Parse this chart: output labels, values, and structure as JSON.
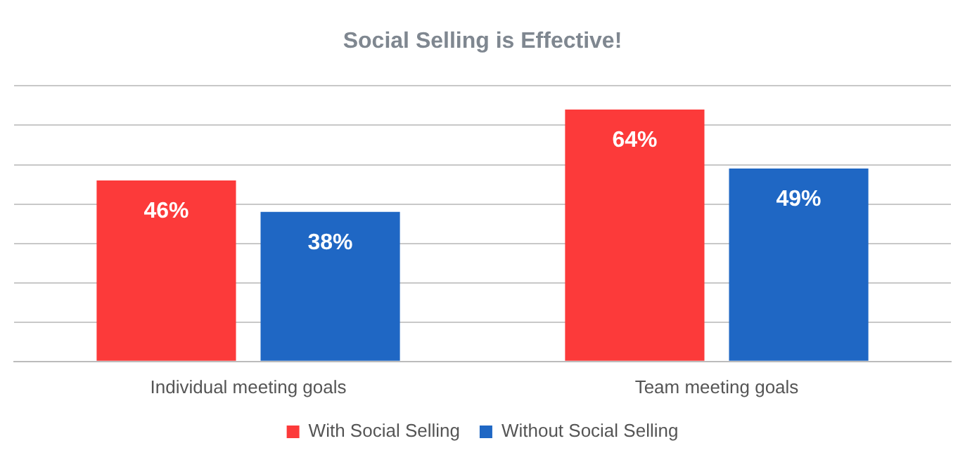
{
  "chart_data": {
    "type": "bar",
    "title": "Social Selling is Effective!",
    "categories": [
      "Individual meeting goals",
      "Team meeting goals"
    ],
    "series": [
      {
        "name": "With Social Selling",
        "color": "#fc3a3a",
        "values": [
          46,
          64
        ],
        "value_labels": [
          "46%",
          "64%"
        ]
      },
      {
        "name": "Without Social Selling",
        "color": "#1f67c4",
        "values": [
          38,
          49
        ],
        "value_labels": [
          "38%",
          "49%"
        ]
      }
    ],
    "ylim": [
      0,
      70
    ],
    "yticks": [
      {
        "value": 0,
        "label": null
      },
      {
        "value": 10,
        "label": null
      },
      {
        "value": 20,
        "label": null
      },
      {
        "value": 30,
        "label": null
      },
      {
        "value": 40,
        "label": null
      },
      {
        "value": 50,
        "label": null
      },
      {
        "value": 60,
        "label": null
      },
      {
        "value": 70,
        "label": null
      }
    ],
    "tick_labels": "x",
    "grid": "y",
    "legend": "bottom"
  }
}
